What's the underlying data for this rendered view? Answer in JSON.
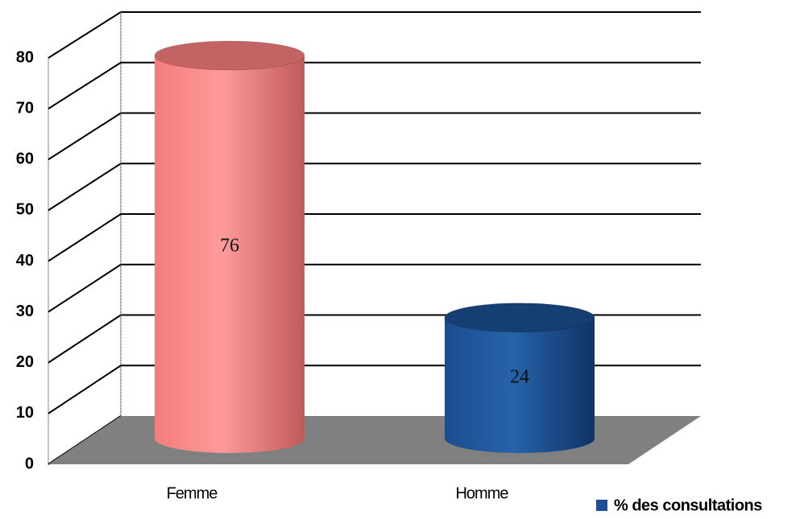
{
  "chart_data": {
    "type": "bar3d",
    "categories": [
      "Femme",
      "Homme"
    ],
    "series": [
      {
        "name": "% des consultations",
        "color": "#1f4e94",
        "values": [
          76,
          24
        ],
        "point_colors": [
          "#f47c7c",
          "#1a4d8f"
        ]
      }
    ],
    "ylim": [
      0,
      80
    ],
    "yticks": [
      0,
      10,
      20,
      30,
      40,
      50,
      60,
      70,
      80
    ],
    "grid": true,
    "legend": "bottom-right",
    "data_labels": true
  }
}
